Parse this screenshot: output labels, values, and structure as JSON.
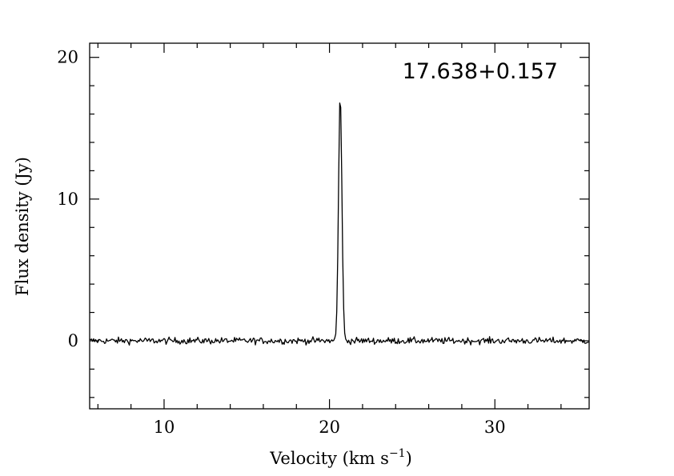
{
  "chart_data": {
    "type": "line",
    "title": "17.638+0.157",
    "xlabel": "Velocity (km s",
    "xlabel_superscript": "−1",
    "xlabel_close": ")",
    "ylabel": "Flux density (Jy)",
    "xlim": [
      5.5,
      35.7
    ],
    "ylim": [
      -4.8,
      21
    ],
    "x_major_ticks": [
      10,
      20,
      30
    ],
    "x_tick_labels": [
      "10",
      "20",
      "30"
    ],
    "x_minor_step": 2,
    "y_major_ticks": [
      0,
      10,
      20
    ],
    "y_tick_labels": [
      "0",
      "10",
      "20"
    ],
    "y_minor_step": 2,
    "grid": false,
    "series": [
      {
        "color": "#000000",
        "baseline": 0,
        "noise_rms": 0.18,
        "sample_step": 0.06,
        "peaks": [
          {
            "x": 20.65,
            "y": 17.4,
            "fwhm": 0.24
          }
        ]
      }
    ]
  }
}
